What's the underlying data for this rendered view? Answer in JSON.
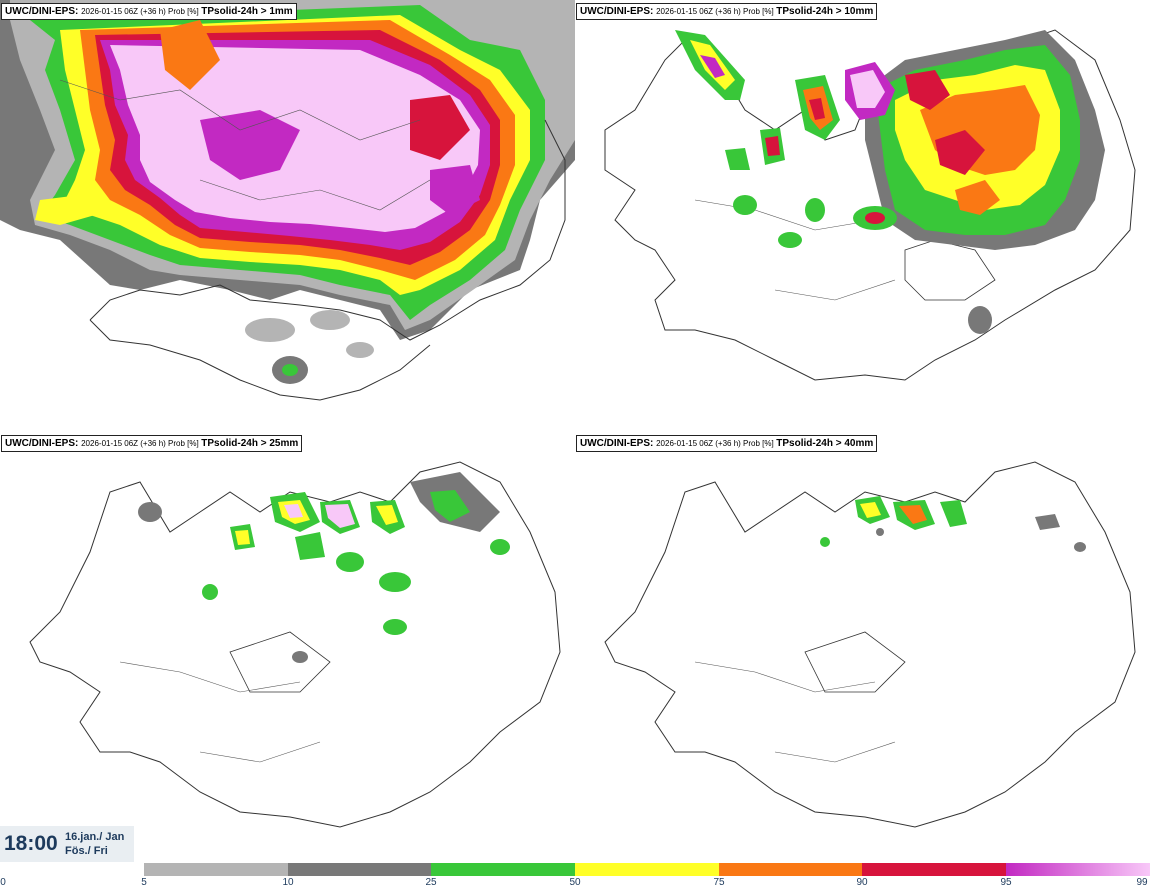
{
  "panels": [
    {
      "model": "UWC/DINI-EPS",
      "meta": "2026-01-15 06Z (+36 h) Prob [%]",
      "variable": "TPsolid-24h > 1mm"
    },
    {
      "model": "UWC/DINI-EPS",
      "meta": "2026-01-15 06Z (+36 h) Prob [%]",
      "variable": "TPsolid-24h > 10mm"
    },
    {
      "model": "UWC/DINI-EPS",
      "meta": "2026-01-15 06Z (+36 h) Prob [%]",
      "variable": "TPsolid-24h > 25mm"
    },
    {
      "model": "UWC/DINI-EPS",
      "meta": "2026-01-15 06Z (+36 h) Prob [%]",
      "variable": "TPsolid-24h > 40mm"
    }
  ],
  "valid_time": {
    "time": "18:00",
    "date_line1": "16.jan./ Jan",
    "date_line2": "Fös./ Fri"
  },
  "colorbar": {
    "labels": [
      "0",
      "5",
      "10",
      "25",
      "50",
      "75",
      "90",
      "95",
      "99"
    ],
    "colors": [
      "#b4b4b4",
      "#787878",
      "#39c739",
      "#ffff28",
      "#fa7814",
      "#d7143c",
      "#c229c2",
      "#f8c8f8"
    ]
  },
  "map_colors": {
    "p5": "#b4b4b4",
    "p10": "#787878",
    "p25": "#39c739",
    "p50": "#ffff28",
    "p75": "#fa7814",
    "p90": "#d7143c",
    "p95": "#c229c2",
    "p99": "#f8c8f8",
    "coast": "#333333",
    "roads": "#555555"
  }
}
